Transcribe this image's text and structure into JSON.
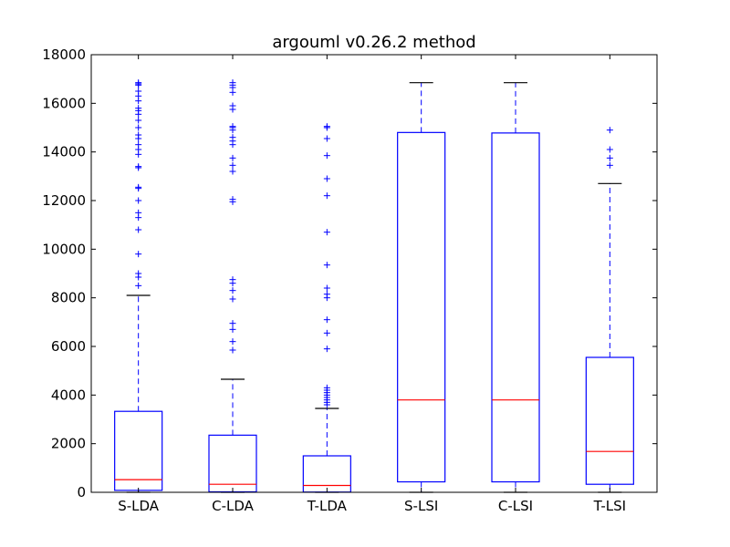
{
  "chart_data": {
    "type": "boxplot",
    "title": "argouml v0.26.2 method",
    "xlabel": "",
    "ylabel": "",
    "ylim": [
      0,
      18000
    ],
    "yticks": [
      0,
      2000,
      4000,
      6000,
      8000,
      10000,
      12000,
      14000,
      16000,
      18000
    ],
    "grid": false,
    "categories": [
      "S-LDA",
      "C-LDA",
      "T-LDA",
      "S-LSI",
      "C-LSI",
      "T-LSI"
    ],
    "colors": {
      "box": "#0000ff",
      "median": "#ff0000",
      "cap": "#000000",
      "flier": "#0000ff"
    },
    "boxes": [
      {
        "label": "S-LDA",
        "whisker_low": 0,
        "q1": 80,
        "median": 520,
        "q3": 3330,
        "whisker_high": 8100,
        "fliers": [
          8500,
          8850,
          9000,
          9800,
          10800,
          11300,
          11500,
          12000,
          12500,
          12550,
          13350,
          13400,
          13900,
          14100,
          14300,
          14550,
          14700,
          15000,
          15300,
          15550,
          15700,
          15800,
          16100,
          16300,
          16500,
          16750,
          16800,
          16850
        ]
      },
      {
        "label": "C-LDA",
        "whisker_low": 0,
        "q1": 20,
        "median": 330,
        "q3": 2350,
        "whisker_high": 4650,
        "fliers": [
          5850,
          6200,
          6700,
          6950,
          7950,
          8300,
          8600,
          8750,
          11950,
          12050,
          13200,
          13450,
          13750,
          14300,
          14450,
          14600,
          14900,
          15000,
          15050,
          15750,
          15900,
          16450,
          16650,
          16750,
          16850
        ]
      },
      {
        "label": "T-LDA",
        "whisker_low": 0,
        "q1": 10,
        "median": 280,
        "q3": 1500,
        "whisker_high": 3450,
        "fliers": [
          3600,
          3700,
          3800,
          3900,
          4000,
          4100,
          4200,
          4300,
          5900,
          6550,
          7100,
          8000,
          8150,
          8400,
          9350,
          10700,
          12200,
          12900,
          13850,
          14550,
          15000,
          15050
        ]
      },
      {
        "label": "S-LSI",
        "whisker_low": 0,
        "q1": 430,
        "median": 3800,
        "q3": 14800,
        "whisker_high": 16850,
        "fliers": []
      },
      {
        "label": "C-LSI",
        "whisker_low": 0,
        "q1": 430,
        "median": 3800,
        "q3": 14780,
        "whisker_high": 16850,
        "fliers": []
      },
      {
        "label": "T-LSI",
        "whisker_low": 0,
        "q1": 330,
        "median": 1680,
        "q3": 5550,
        "whisker_high": 12700,
        "fliers": [
          13450,
          13750,
          14100,
          14900
        ]
      }
    ]
  }
}
